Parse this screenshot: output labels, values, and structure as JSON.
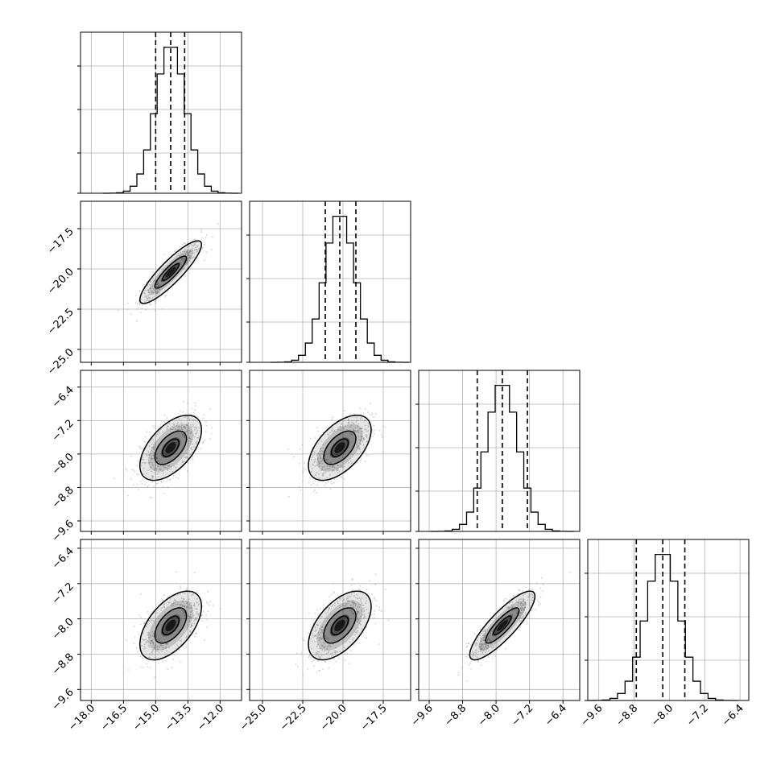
{
  "chart_data": {
    "type": "corner",
    "title": "",
    "parameters": [
      {
        "index": 0,
        "range": [
          -18.5,
          -11.0
        ],
        "ticks": [
          -18.0,
          -16.5,
          -15.0,
          -13.5,
          -12.0
        ],
        "tick_labels": [
          "−18.0",
          "−16.5",
          "−15.0",
          "−13.5",
          "−12.0"
        ],
        "quantiles": [
          -15.0,
          -14.3,
          -13.65
        ],
        "mean": -14.3,
        "sd": 0.7
      },
      {
        "index": 1,
        "range": [
          -25.8,
          -15.8
        ],
        "ticks": [
          -25.0,
          -22.5,
          -20.0,
          -17.5
        ],
        "tick_labels": [
          "−25.0",
          "−22.5",
          "−20.0",
          "−17.5"
        ],
        "quantiles": [
          -21.1,
          -20.2,
          -19.2
        ],
        "mean": -20.2,
        "sd": 0.95
      },
      {
        "index": 2,
        "range": [
          -9.85,
          -6.0
        ],
        "ticks": [
          -9.6,
          -8.8,
          -8.0,
          -7.2,
          -6.4
        ],
        "tick_labels": [
          "−9.6",
          "−8.8",
          "−8.0",
          "−7.2",
          "−6.4"
        ],
        "quantiles": [
          -8.45,
          -7.85,
          -7.25
        ],
        "mean": -7.85,
        "sd": 0.38
      },
      {
        "index": 3,
        "range": [
          -9.85,
          -6.2
        ],
        "ticks": [
          -9.6,
          -8.8,
          -8.0,
          -7.2,
          -6.4
        ],
        "tick_labels": [
          "−9.6",
          "−8.8",
          "−8.0",
          "−7.2",
          "−6.4"
        ],
        "quantiles": [
          -8.75,
          -8.15,
          -7.65
        ],
        "mean": -8.15,
        "sd": 0.38
      }
    ],
    "correlations": [
      {
        "pair": [
          0,
          1
        ],
        "rho": 0.88
      },
      {
        "pair": [
          0,
          2
        ],
        "rho": 0.55
      },
      {
        "pair": [
          1,
          2
        ],
        "rho": 0.55
      },
      {
        "pair": [
          0,
          3
        ],
        "rho": 0.55
      },
      {
        "pair": [
          1,
          3
        ],
        "rho": 0.55
      },
      {
        "pair": [
          2,
          3
        ],
        "rho": 0.85
      }
    ],
    "histogram_bins": 20,
    "contour_levels_sigma": [
      1,
      2
    ],
    "grid": true,
    "colors": {
      "axes": "#000000",
      "grid": "#b0b0b0",
      "hist_line": "#000000",
      "quantile_line": "#000000",
      "scatter": "#9a9a9a",
      "density": "#000000"
    }
  }
}
